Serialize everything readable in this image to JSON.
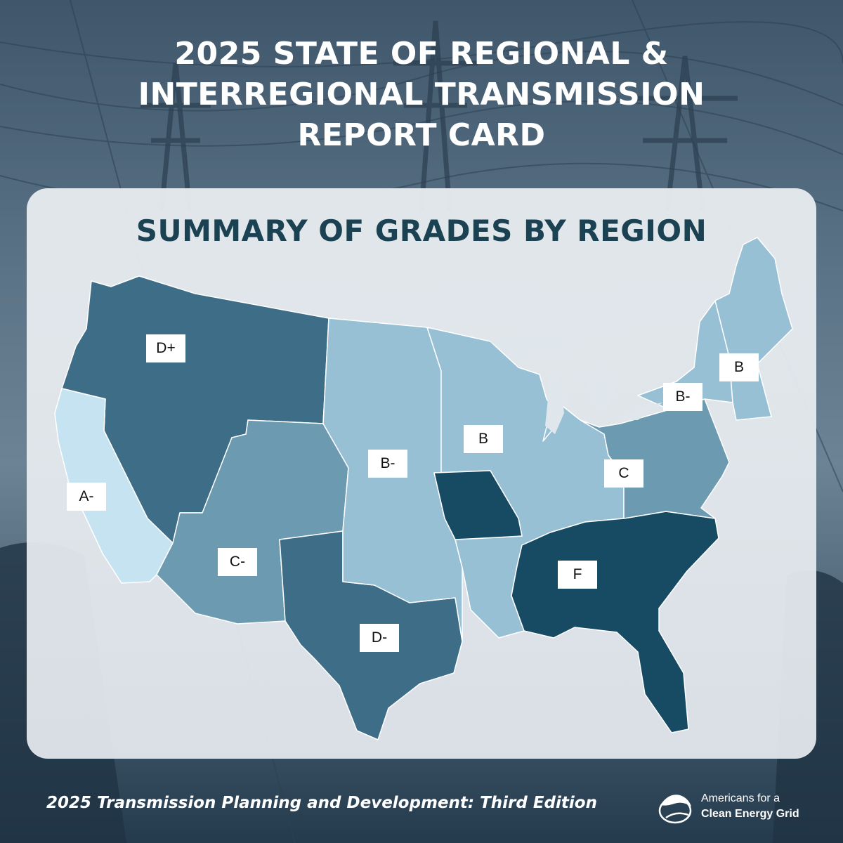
{
  "header": {
    "title_lines": [
      "2025 STATE OF REGIONAL &",
      "INTERREGIONAL TRANSMISSION",
      "REPORT CARD"
    ]
  },
  "panel": {
    "title": "SUMMARY OF GRADES BY REGION"
  },
  "map": {
    "regions": [
      {
        "id": "northwest",
        "grade": "D+",
        "color": "#3d6d87"
      },
      {
        "id": "california",
        "grade": "A-",
        "color": "#c5e3f1"
      },
      {
        "id": "southwest",
        "grade": "C-",
        "color": "#6c9bb1"
      },
      {
        "id": "texas",
        "grade": "D-",
        "color": "#3d6d87"
      },
      {
        "id": "plains",
        "grade": "B-",
        "color": "#97c0d5"
      },
      {
        "id": "midcontinent",
        "grade": "B",
        "color": "#97c0d5"
      },
      {
        "id": "missouri",
        "grade": "",
        "color": "#174a63"
      },
      {
        "id": "southeast",
        "grade": "F",
        "color": "#174a63"
      },
      {
        "id": "midatlantic",
        "grade": "C",
        "color": "#6c9bb1"
      },
      {
        "id": "newyork",
        "grade": "B-",
        "color": "#97c0d5"
      },
      {
        "id": "newengland",
        "grade": "B",
        "color": "#97c0d5"
      }
    ]
  },
  "footer": {
    "edition": "2025 Transmission Planning and Development: Third Edition",
    "org_line1": "Americans for a",
    "org_line2": "Clean Energy Grid",
    "logo_icon": "bird-globe-icon"
  }
}
